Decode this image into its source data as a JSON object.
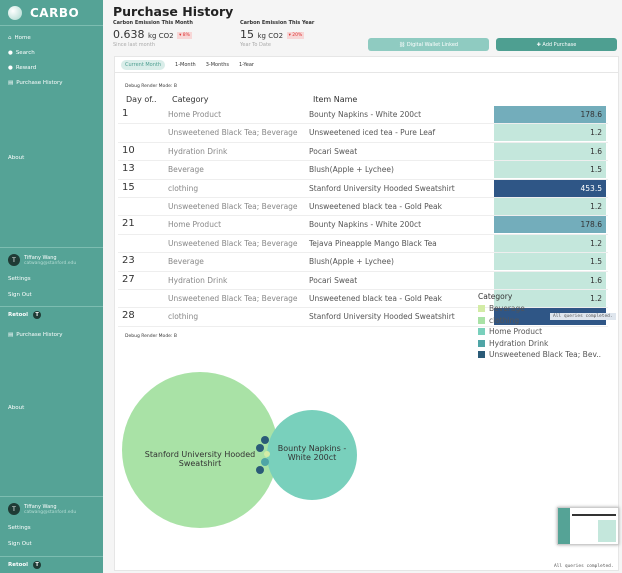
{
  "app": {
    "name": "CARBO"
  },
  "sidebar": {
    "items": [
      {
        "label": "Home",
        "icon": "home-icon"
      },
      {
        "label": "Search",
        "icon": "search-icon"
      },
      {
        "label": "Reward",
        "icon": "reward-icon"
      },
      {
        "label": "Purchase History",
        "icon": "receipt-icon"
      }
    ],
    "about": "About",
    "user": {
      "initial": "T",
      "name": "Tiffany Wang",
      "email": "catwang@stanford.edu"
    },
    "settings": "Settings",
    "signout": "Sign Out",
    "retool": "Retool",
    "retool_badge": "T"
  },
  "page": {
    "title": "Purchase History"
  },
  "stats": [
    {
      "label": "Carbon Emission This Month",
      "value": "0.638",
      "unit": "kg CO2",
      "badge": "▾ 8%",
      "sub": "Since last month"
    },
    {
      "label": "Carbon Emission This Year",
      "value": "15",
      "unit": "kg CO2",
      "badge": "▾ 20%",
      "sub": "Year To Date"
    }
  ],
  "buttons": {
    "wallet": "⛓ Digital Wallet Linked",
    "add": "✚ Add Purchase"
  },
  "tabs": [
    "Current Month",
    "1-Month",
    "3-Months",
    "1-Year"
  ],
  "debug": "Debug Render Mode: B",
  "table": {
    "headers": {
      "day": "Day of..",
      "category": "Category",
      "item": "Item Name"
    },
    "rows": [
      {
        "day": "1",
        "category": "Home Product",
        "item": "Bounty Napkins - White 200ct",
        "value": "178.6",
        "color": "#73adbb"
      },
      {
        "day": "",
        "category": "Unsweetened Black Tea; Beverage",
        "item": "Unsweetened iced tea - Pure Leaf",
        "value": "1.2",
        "color": "#c4e7dc"
      },
      {
        "day": "10",
        "category": "Hydration Drink",
        "item": "Pocari Sweat",
        "value": "1.6",
        "color": "#c4e7dc"
      },
      {
        "day": "13",
        "category": "Beverage",
        "item": "Blush(Apple + Lychee)",
        "value": "1.5",
        "color": "#c4e7dc"
      },
      {
        "day": "15",
        "category": "clothing",
        "item": "Stanford University Hooded Sweatshirt",
        "value": "453.5",
        "color": "#2f5686"
      },
      {
        "day": "",
        "category": "Unsweetened Black Tea; Beverage",
        "item": "Unsweetened black tea - Gold Peak",
        "value": "1.2",
        "color": "#c4e7dc"
      },
      {
        "day": "21",
        "category": "Home Product",
        "item": "Bounty Napkins - White 200ct",
        "value": "178.6",
        "color": "#73adbb"
      },
      {
        "day": "",
        "category": "Unsweetened Black Tea; Beverage",
        "item": "Tejava Pineapple Mango Black Tea",
        "value": "1.2",
        "color": "#c4e7dc"
      },
      {
        "day": "23",
        "category": "Beverage",
        "item": "Blush(Apple + Lychee)",
        "value": "1.5",
        "color": "#c4e7dc"
      },
      {
        "day": "27",
        "category": "Hydration Drink",
        "item": "Pocari Sweat",
        "value": "1.6",
        "color": "#c4e7dc"
      },
      {
        "day": "",
        "category": "Unsweetened Black Tea; Beverage",
        "item": "Unsweetened black tea - Gold Peak",
        "value": "1.2",
        "color": "#c4e7dc"
      },
      {
        "day": "28",
        "category": "clothing",
        "item": "Stanford University Hooded Sweatshirt",
        "value": "",
        "color": "#2f5686"
      }
    ]
  },
  "toast": "All queries completed.",
  "bubbles": {
    "big": "Stanford University Hooded Sweatshirt",
    "small": "Bounty Napkins - White 200ct"
  },
  "legend": {
    "title": "Category",
    "items": [
      {
        "label": "Beverage",
        "color": "#d3eca6"
      },
      {
        "label": "clothing",
        "color": "#a9e2a6"
      },
      {
        "label": "Home Product",
        "color": "#79d0bc"
      },
      {
        "label": "Hydration Drink",
        "color": "#4fa5a6"
      },
      {
        "label": "Unsweetened Black Tea; Bev..",
        "color": "#2b5b78"
      }
    ]
  }
}
